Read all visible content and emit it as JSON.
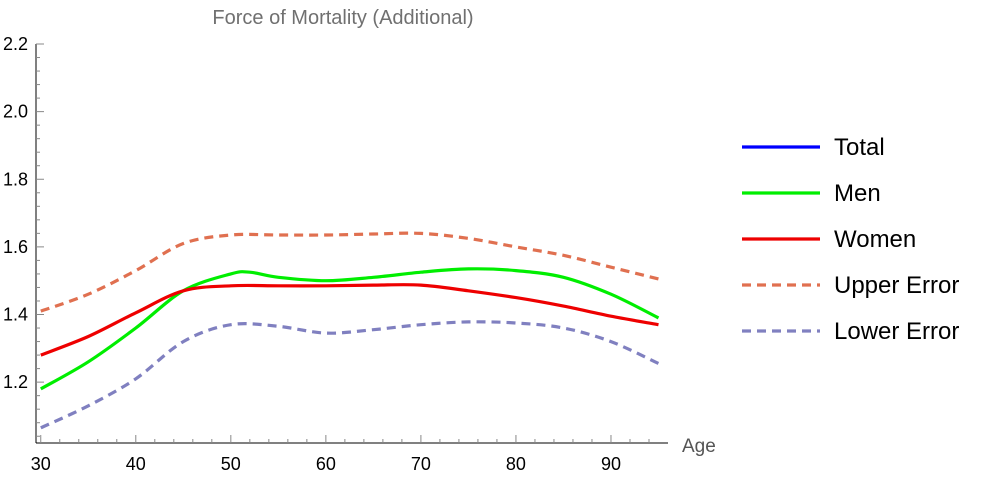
{
  "chart_data": {
    "type": "line",
    "title": "Force of Mortality (Additional)",
    "xlabel": "Age",
    "ylabel": "",
    "xlim": [
      29.5,
      96
    ],
    "ylim": [
      1.02,
      2.2
    ],
    "x_ticks": [
      30,
      40,
      50,
      60,
      70,
      80,
      90
    ],
    "y_ticks": [
      1.2,
      1.4,
      1.6,
      1.8,
      2.0,
      2.2
    ],
    "x_tick_labels": [
      "30",
      "40",
      "50",
      "60",
      "70",
      "80",
      "90"
    ],
    "y_tick_labels": [
      "1.2",
      "1.4",
      "1.6",
      "1.8",
      "2.0",
      "2.2"
    ],
    "grid": false,
    "legend_position": "right",
    "series": [
      {
        "name": "Total",
        "color": "#0000ff",
        "dash": "solid",
        "x": [],
        "y": []
      },
      {
        "name": "Men",
        "color": "#00ee00",
        "dash": "solid",
        "x": [
          30,
          35,
          40,
          45,
          50,
          52,
          55,
          60,
          65,
          70,
          75,
          80,
          85,
          90,
          95
        ],
        "y": [
          1.18,
          1.26,
          1.36,
          1.47,
          1.52,
          1.525,
          1.51,
          1.5,
          1.51,
          1.525,
          1.535,
          1.53,
          1.51,
          1.46,
          1.39
        ]
      },
      {
        "name": "Women",
        "color": "#ee0000",
        "dash": "solid",
        "x": [
          30,
          35,
          40,
          45,
          50,
          55,
          60,
          65,
          70,
          75,
          80,
          85,
          90,
          95
        ],
        "y": [
          1.28,
          1.335,
          1.405,
          1.47,
          1.485,
          1.485,
          1.485,
          1.487,
          1.487,
          1.47,
          1.45,
          1.425,
          1.395,
          1.37
        ]
      },
      {
        "name": "Upper Error",
        "color": "#e07050",
        "dash": "dashed",
        "x": [
          30,
          35,
          40,
          45,
          50,
          55,
          60,
          65,
          70,
          75,
          80,
          85,
          90,
          95
        ],
        "y": [
          1.41,
          1.46,
          1.53,
          1.61,
          1.635,
          1.635,
          1.635,
          1.638,
          1.64,
          1.625,
          1.6,
          1.575,
          1.54,
          1.505
        ]
      },
      {
        "name": "Lower Error",
        "color": "#8080c0",
        "dash": "dashed",
        "x": [
          30,
          35,
          40,
          45,
          50,
          55,
          60,
          65,
          70,
          75,
          80,
          85,
          90,
          95
        ],
        "y": [
          1.065,
          1.13,
          1.21,
          1.32,
          1.37,
          1.365,
          1.345,
          1.355,
          1.37,
          1.378,
          1.375,
          1.36,
          1.32,
          1.255
        ]
      }
    ]
  }
}
